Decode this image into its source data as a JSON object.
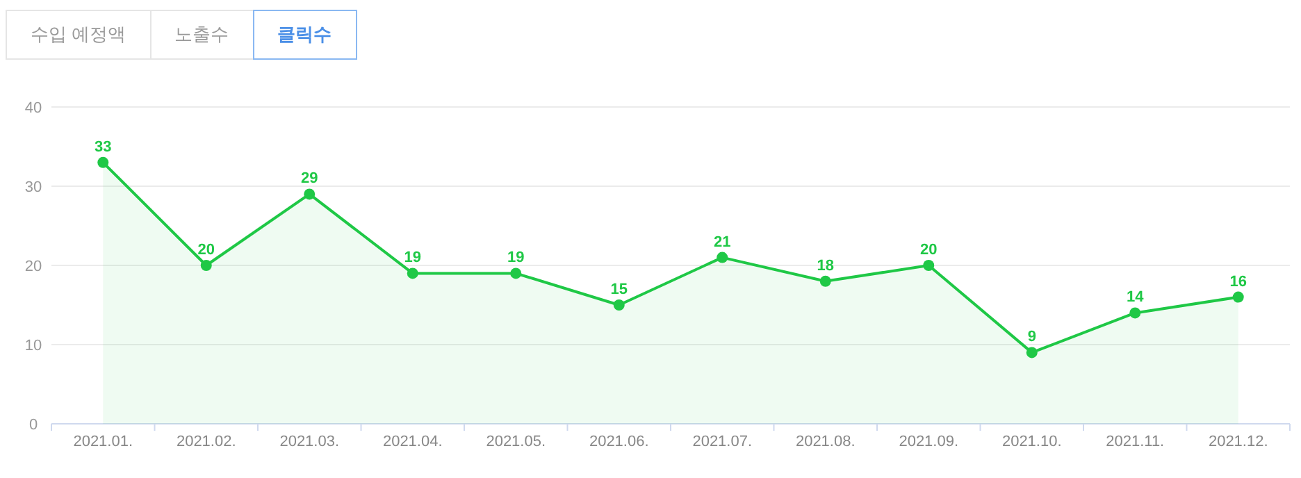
{
  "chart_data": {
    "type": "area",
    "annotations": [
      "수입 예정액",
      "노출수",
      "클릭수"
    ],
    "categories": [
      "2021.01.",
      "2021.02.",
      "2021.03.",
      "2021.04.",
      "2021.05.",
      "2021.06.",
      "2021.07.",
      "2021.08.",
      "2021.09.",
      "2021.10.",
      "2021.11.",
      "2021.12."
    ],
    "series": [
      {
        "color": "#1fc846",
        "values": [
          33,
          20,
          29,
          19,
          19,
          15,
          21,
          18,
          20,
          9,
          14,
          16
        ]
      }
    ],
    "ylim": [
      0,
      40
    ],
    "yticks": [
      0,
      10,
      20,
      30,
      40
    ],
    "grid": "y",
    "marker": "circle",
    "data_labels": true
  }
}
